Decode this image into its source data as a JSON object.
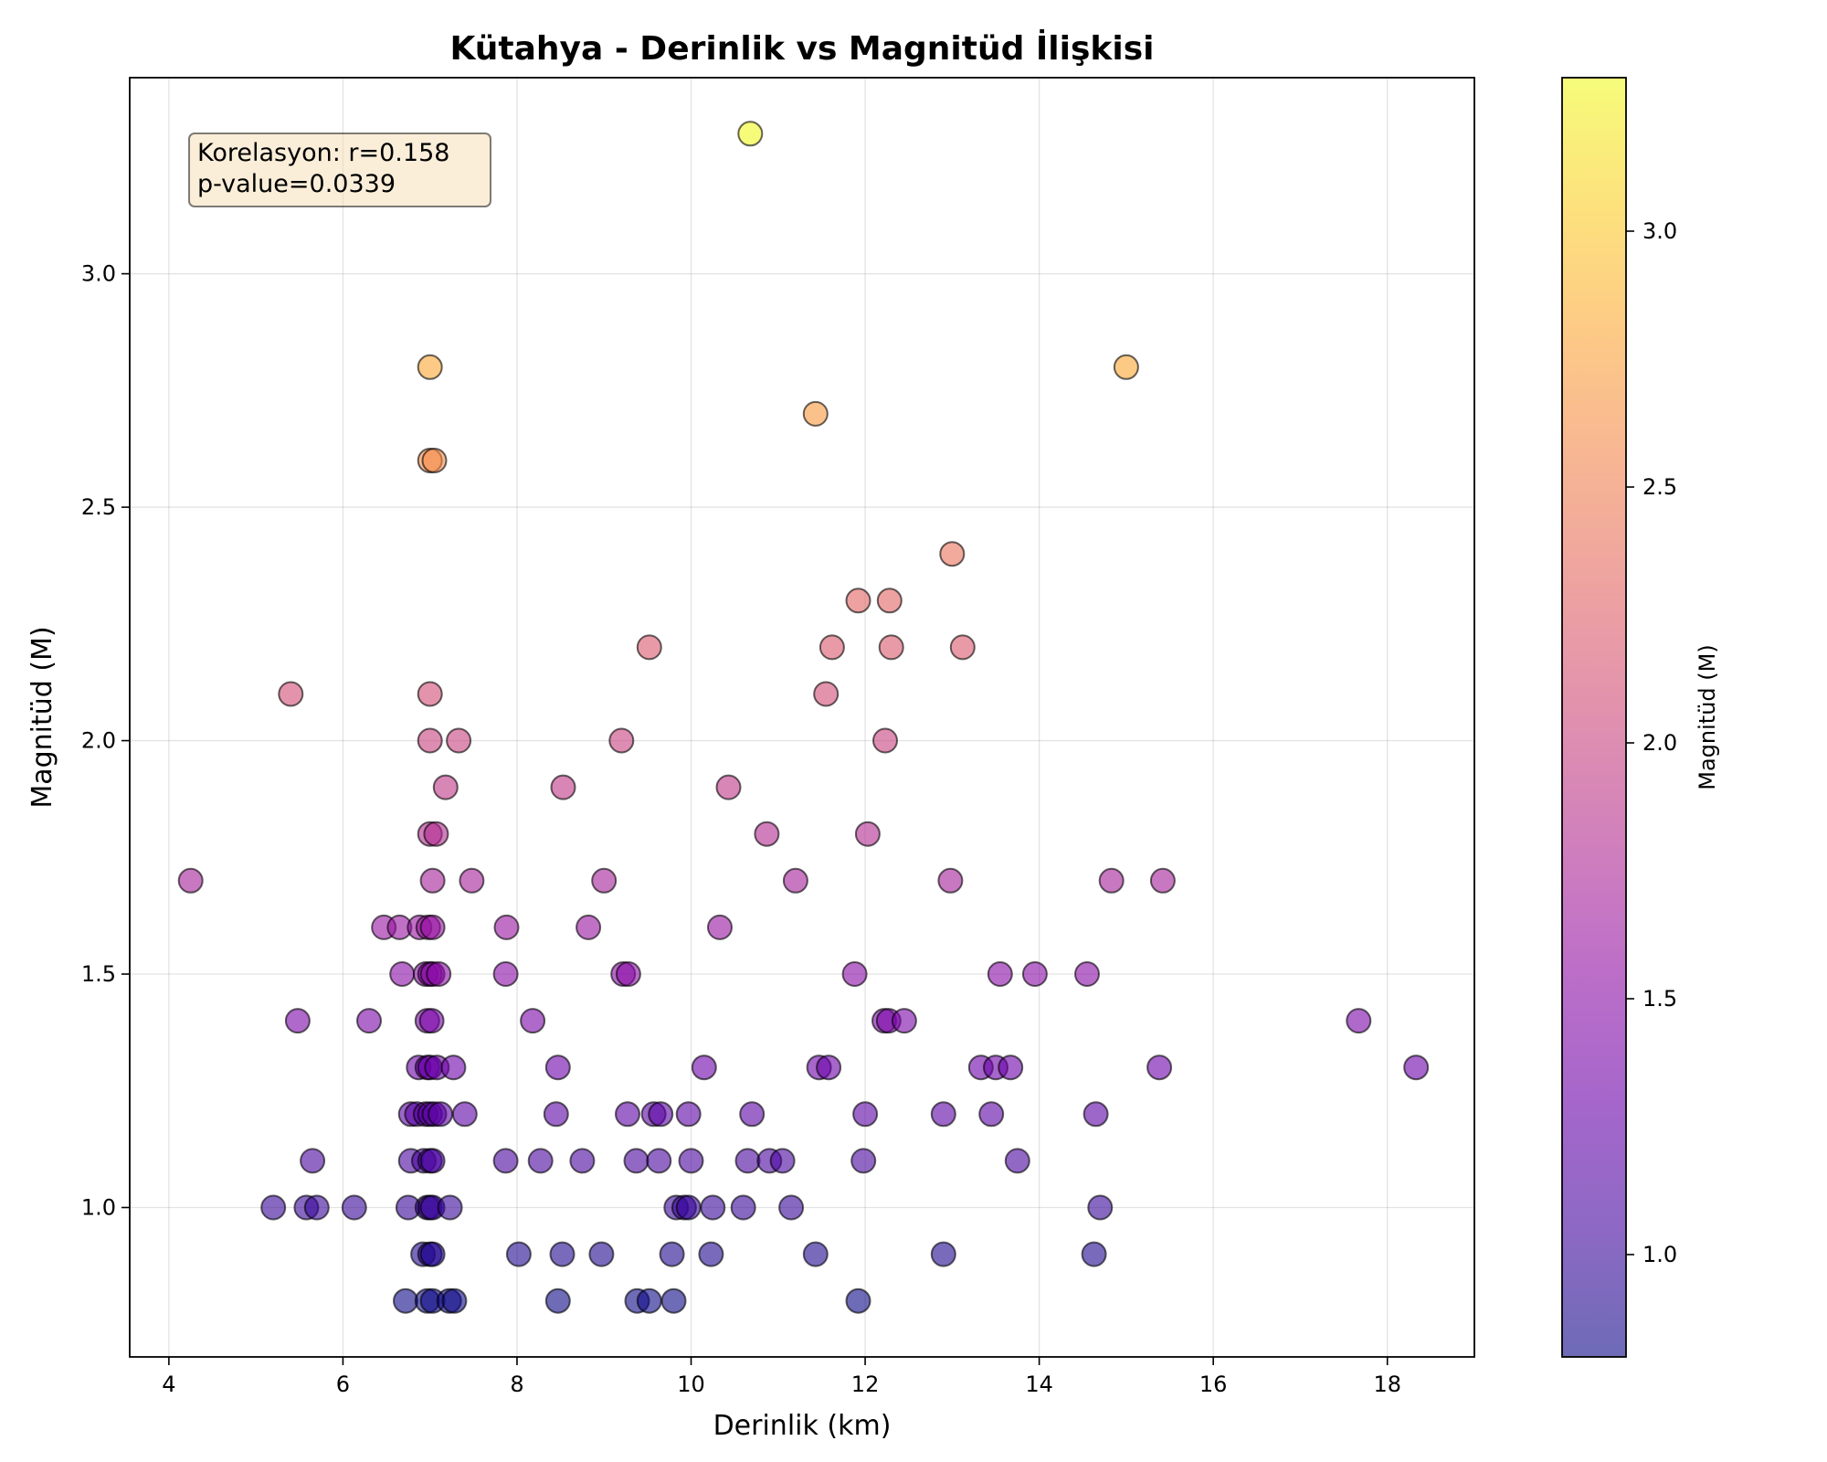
{
  "chart_data": {
    "type": "scatter",
    "title": "Kütahya - Derinlik vs Magnitüd İlişkisi",
    "xlabel": "Derinlik (km)",
    "ylabel": "Magnitüd (M)",
    "xlim": [
      3.55,
      19.0
    ],
    "ylim": [
      0.68,
      3.42
    ],
    "xticks": [
      4,
      6,
      8,
      10,
      12,
      14,
      16,
      18
    ],
    "yticks": [
      1.0,
      1.5,
      2.0,
      2.5,
      3.0
    ],
    "xtick_labels": [
      "4",
      "6",
      "8",
      "10",
      "12",
      "14",
      "16",
      "18"
    ],
    "ytick_labels": [
      "1.0",
      "1.5",
      "2.0",
      "2.5",
      "3.0"
    ],
    "grid": true,
    "colormap": "plasma",
    "marker_alpha": 0.6,
    "colorbar": {
      "label": "Magnitüd (M)",
      "range": [
        0.8,
        3.3
      ],
      "ticks": [
        1.0,
        1.5,
        2.0,
        2.5,
        3.0
      ],
      "tick_labels": [
        "1.0",
        "1.5",
        "2.0",
        "2.5",
        "3.0"
      ]
    },
    "annotation": {
      "lines": [
        "Korelasyon: r=0.158",
        "p-value=0.0339"
      ],
      "placement": "top-left",
      "background": "#f5deb3"
    },
    "points": [
      {
        "x": 10.68,
        "y": 3.3
      },
      {
        "x": 7.0,
        "y": 2.8
      },
      {
        "x": 15.0,
        "y": 2.8
      },
      {
        "x": 11.43,
        "y": 2.7
      },
      {
        "x": 7.0,
        "y": 2.6
      },
      {
        "x": 7.05,
        "y": 2.6
      },
      {
        "x": 13.0,
        "y": 2.4
      },
      {
        "x": 11.92,
        "y": 2.3
      },
      {
        "x": 12.28,
        "y": 2.3
      },
      {
        "x": 9.52,
        "y": 2.2
      },
      {
        "x": 11.62,
        "y": 2.2
      },
      {
        "x": 12.3,
        "y": 2.2
      },
      {
        "x": 13.12,
        "y": 2.2
      },
      {
        "x": 5.4,
        "y": 2.1
      },
      {
        "x": 7.0,
        "y": 2.1
      },
      {
        "x": 11.55,
        "y": 2.1
      },
      {
        "x": 7.0,
        "y": 2.0
      },
      {
        "x": 7.33,
        "y": 2.0
      },
      {
        "x": 9.2,
        "y": 2.0
      },
      {
        "x": 12.23,
        "y": 2.0
      },
      {
        "x": 7.18,
        "y": 1.9
      },
      {
        "x": 8.53,
        "y": 1.9
      },
      {
        "x": 10.43,
        "y": 1.9
      },
      {
        "x": 7.0,
        "y": 1.8
      },
      {
        "x": 7.07,
        "y": 1.8
      },
      {
        "x": 10.87,
        "y": 1.8
      },
      {
        "x": 12.03,
        "y": 1.8
      },
      {
        "x": 4.25,
        "y": 1.7
      },
      {
        "x": 7.03,
        "y": 1.7
      },
      {
        "x": 7.48,
        "y": 1.7
      },
      {
        "x": 9.0,
        "y": 1.7
      },
      {
        "x": 11.2,
        "y": 1.7
      },
      {
        "x": 12.98,
        "y": 1.7
      },
      {
        "x": 14.83,
        "y": 1.7
      },
      {
        "x": 15.42,
        "y": 1.7
      },
      {
        "x": 6.47,
        "y": 1.6
      },
      {
        "x": 6.65,
        "y": 1.6
      },
      {
        "x": 6.88,
        "y": 1.6
      },
      {
        "x": 6.98,
        "y": 1.6
      },
      {
        "x": 7.03,
        "y": 1.6
      },
      {
        "x": 7.88,
        "y": 1.6
      },
      {
        "x": 8.82,
        "y": 1.6
      },
      {
        "x": 10.33,
        "y": 1.6
      },
      {
        "x": 6.68,
        "y": 1.5
      },
      {
        "x": 6.95,
        "y": 1.5
      },
      {
        "x": 7.0,
        "y": 1.5
      },
      {
        "x": 7.03,
        "y": 1.5
      },
      {
        "x": 7.1,
        "y": 1.5
      },
      {
        "x": 7.87,
        "y": 1.5
      },
      {
        "x": 9.22,
        "y": 1.5
      },
      {
        "x": 9.28,
        "y": 1.5
      },
      {
        "x": 11.88,
        "y": 1.5
      },
      {
        "x": 13.55,
        "y": 1.5
      },
      {
        "x": 13.95,
        "y": 1.5
      },
      {
        "x": 14.55,
        "y": 1.5
      },
      {
        "x": 5.48,
        "y": 1.4
      },
      {
        "x": 6.3,
        "y": 1.4
      },
      {
        "x": 6.97,
        "y": 1.4
      },
      {
        "x": 7.02,
        "y": 1.4
      },
      {
        "x": 8.18,
        "y": 1.4
      },
      {
        "x": 12.22,
        "y": 1.4
      },
      {
        "x": 12.27,
        "y": 1.4
      },
      {
        "x": 12.45,
        "y": 1.4
      },
      {
        "x": 17.67,
        "y": 1.4
      },
      {
        "x": 6.87,
        "y": 1.3
      },
      {
        "x": 6.97,
        "y": 1.3
      },
      {
        "x": 7.0,
        "y": 1.3
      },
      {
        "x": 7.08,
        "y": 1.3
      },
      {
        "x": 7.27,
        "y": 1.3
      },
      {
        "x": 8.47,
        "y": 1.3
      },
      {
        "x": 10.15,
        "y": 1.3
      },
      {
        "x": 11.47,
        "y": 1.3
      },
      {
        "x": 11.58,
        "y": 1.3
      },
      {
        "x": 13.33,
        "y": 1.3
      },
      {
        "x": 13.5,
        "y": 1.3
      },
      {
        "x": 13.67,
        "y": 1.3
      },
      {
        "x": 15.38,
        "y": 1.3
      },
      {
        "x": 18.33,
        "y": 1.3
      },
      {
        "x": 6.78,
        "y": 1.2
      },
      {
        "x": 6.85,
        "y": 1.2
      },
      {
        "x": 6.95,
        "y": 1.2
      },
      {
        "x": 7.0,
        "y": 1.2
      },
      {
        "x": 7.05,
        "y": 1.2
      },
      {
        "x": 7.12,
        "y": 1.2
      },
      {
        "x": 7.4,
        "y": 1.2
      },
      {
        "x": 8.45,
        "y": 1.2
      },
      {
        "x": 9.27,
        "y": 1.2
      },
      {
        "x": 9.57,
        "y": 1.2
      },
      {
        "x": 9.65,
        "y": 1.2
      },
      {
        "x": 9.97,
        "y": 1.2
      },
      {
        "x": 10.7,
        "y": 1.2
      },
      {
        "x": 12.0,
        "y": 1.2
      },
      {
        "x": 12.9,
        "y": 1.2
      },
      {
        "x": 13.45,
        "y": 1.2
      },
      {
        "x": 14.65,
        "y": 1.2
      },
      {
        "x": 5.65,
        "y": 1.1
      },
      {
        "x": 6.78,
        "y": 1.1
      },
      {
        "x": 6.93,
        "y": 1.1
      },
      {
        "x": 7.0,
        "y": 1.1
      },
      {
        "x": 7.03,
        "y": 1.1
      },
      {
        "x": 7.87,
        "y": 1.1
      },
      {
        "x": 8.27,
        "y": 1.1
      },
      {
        "x": 8.75,
        "y": 1.1
      },
      {
        "x": 9.37,
        "y": 1.1
      },
      {
        "x": 9.63,
        "y": 1.1
      },
      {
        "x": 10.0,
        "y": 1.1
      },
      {
        "x": 10.65,
        "y": 1.1
      },
      {
        "x": 10.9,
        "y": 1.1
      },
      {
        "x": 11.05,
        "y": 1.1
      },
      {
        "x": 11.98,
        "y": 1.1
      },
      {
        "x": 13.75,
        "y": 1.1
      },
      {
        "x": 5.2,
        "y": 1.0
      },
      {
        "x": 5.58,
        "y": 1.0
      },
      {
        "x": 5.7,
        "y": 1.0
      },
      {
        "x": 6.13,
        "y": 1.0
      },
      {
        "x": 6.75,
        "y": 1.0
      },
      {
        "x": 6.97,
        "y": 1.0
      },
      {
        "x": 7.0,
        "y": 1.0
      },
      {
        "x": 7.03,
        "y": 1.0
      },
      {
        "x": 7.23,
        "y": 1.0
      },
      {
        "x": 9.83,
        "y": 1.0
      },
      {
        "x": 9.92,
        "y": 1.0
      },
      {
        "x": 9.97,
        "y": 1.0
      },
      {
        "x": 10.25,
        "y": 1.0
      },
      {
        "x": 10.6,
        "y": 1.0
      },
      {
        "x": 11.15,
        "y": 1.0
      },
      {
        "x": 14.7,
        "y": 1.0
      },
      {
        "x": 6.92,
        "y": 0.9
      },
      {
        "x": 7.0,
        "y": 0.9
      },
      {
        "x": 7.03,
        "y": 0.9
      },
      {
        "x": 8.02,
        "y": 0.9
      },
      {
        "x": 8.52,
        "y": 0.9
      },
      {
        "x": 8.97,
        "y": 0.9
      },
      {
        "x": 9.78,
        "y": 0.9
      },
      {
        "x": 10.23,
        "y": 0.9
      },
      {
        "x": 11.43,
        "y": 0.9
      },
      {
        "x": 12.9,
        "y": 0.9
      },
      {
        "x": 14.63,
        "y": 0.9
      },
      {
        "x": 6.72,
        "y": 0.8
      },
      {
        "x": 6.97,
        "y": 0.8
      },
      {
        "x": 7.03,
        "y": 0.8
      },
      {
        "x": 7.22,
        "y": 0.8
      },
      {
        "x": 7.28,
        "y": 0.8
      },
      {
        "x": 8.47,
        "y": 0.8
      },
      {
        "x": 9.38,
        "y": 0.8
      },
      {
        "x": 9.52,
        "y": 0.8
      },
      {
        "x": 9.8,
        "y": 0.8
      },
      {
        "x": 11.92,
        "y": 0.8
      }
    ]
  }
}
